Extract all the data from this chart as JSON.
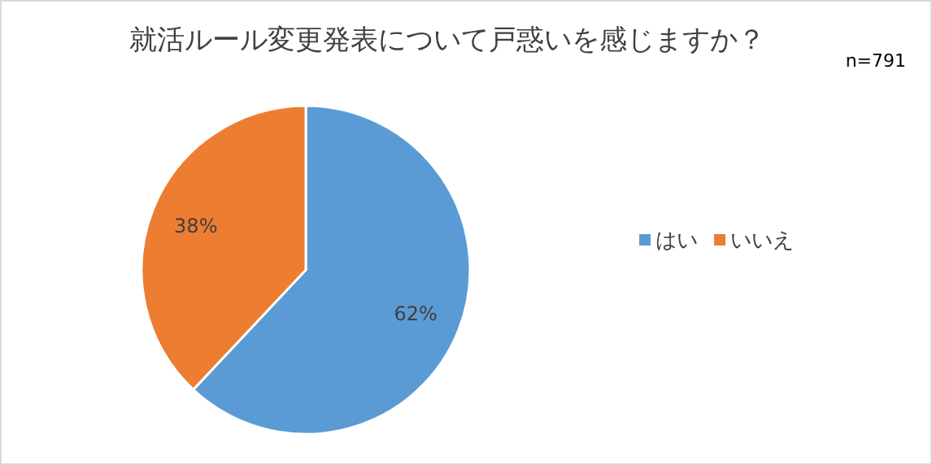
{
  "chart_data": {
    "type": "pie",
    "title": "就活ルール変更発表について戸惑いを感じますか？",
    "annotations": [
      "n=791"
    ],
    "categories": [
      "はい",
      "いいえ"
    ],
    "values": [
      62,
      38
    ],
    "colors": [
      "#5b9bd5",
      "#ed7d31"
    ],
    "value_labels": [
      "62%",
      "38%"
    ],
    "legend": "right"
  }
}
